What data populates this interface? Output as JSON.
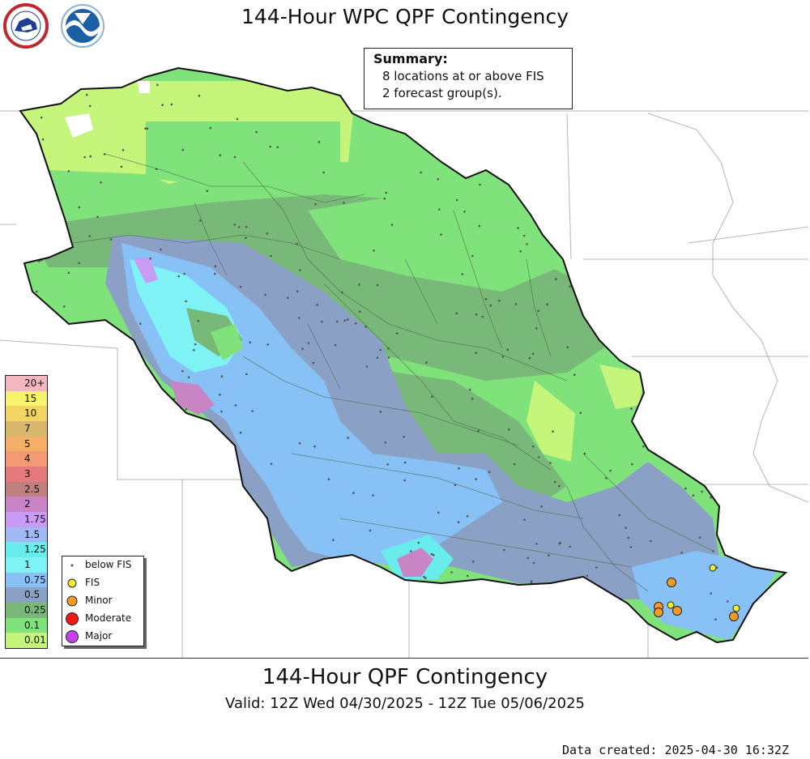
{
  "header": {
    "title": "144-Hour WPC QPF Contingency"
  },
  "logos": [
    {
      "icon": "nws-logo-icon",
      "text": "NATIONAL WEATHER SERVICE"
    },
    {
      "icon": "noaa-logo-icon",
      "text": "NOAA"
    }
  ],
  "summary": {
    "heading": "Summary:",
    "line1": "8 locations at or above FIS",
    "line2": "2 forecast group(s)."
  },
  "colorbar": {
    "entries": [
      {
        "label": "20+",
        "color": "#f6b8c0"
      },
      {
        "label": "15",
        "color": "#f7f36a"
      },
      {
        "label": "10",
        "color": "#f2d463"
      },
      {
        "label": "7",
        "color": "#d8b86d"
      },
      {
        "label": "5",
        "color": "#f4b064"
      },
      {
        "label": "4",
        "color": "#f39a75"
      },
      {
        "label": "3",
        "color": "#e57a7c"
      },
      {
        "label": "2.5",
        "color": "#c07f7f"
      },
      {
        "label": "2",
        "color": "#c884c4"
      },
      {
        "label": "1.75",
        "color": "#c99bf4"
      },
      {
        "label": "1.5",
        "color": "#9fb9f2"
      },
      {
        "label": "1.25",
        "color": "#69ecec"
      },
      {
        "label": "1",
        "color": "#7ff2f6"
      },
      {
        "label": "0.75",
        "color": "#88c1f6"
      },
      {
        "label": "0.5",
        "color": "#8aa0c4"
      },
      {
        "label": "0.25",
        "color": "#78b878"
      },
      {
        "label": "0.1",
        "color": "#80e27a"
      },
      {
        "label": "0.01",
        "color": "#c6f57c"
      }
    ]
  },
  "legend": {
    "items": [
      {
        "label": "below FIS",
        "symbol": "dot",
        "color": "#555555"
      },
      {
        "label": "FIS",
        "symbol": "circle",
        "color": "#f7ef2a"
      },
      {
        "label": "Minor",
        "symbol": "circle",
        "color": "#f59a23"
      },
      {
        "label": "Moderate",
        "symbol": "circle",
        "color": "#ef1a12"
      },
      {
        "label": "Major",
        "symbol": "circle",
        "color": "#c443e8"
      }
    ]
  },
  "map": {
    "colors": {
      "background": "#ffffff",
      "basin_outline": "#111111",
      "state_borders": "#aaaaaa",
      "subbasin_lines": "#3a5a3a"
    },
    "markers": {
      "fis": 4,
      "minor": 4
    }
  },
  "footer": {
    "title": "144-Hour QPF Contingency",
    "valid": "Valid: 12Z Wed 04/30/2025 - 12Z Tue 05/06/2025",
    "created": "Data created: 2025-04-30 16:32Z"
  }
}
